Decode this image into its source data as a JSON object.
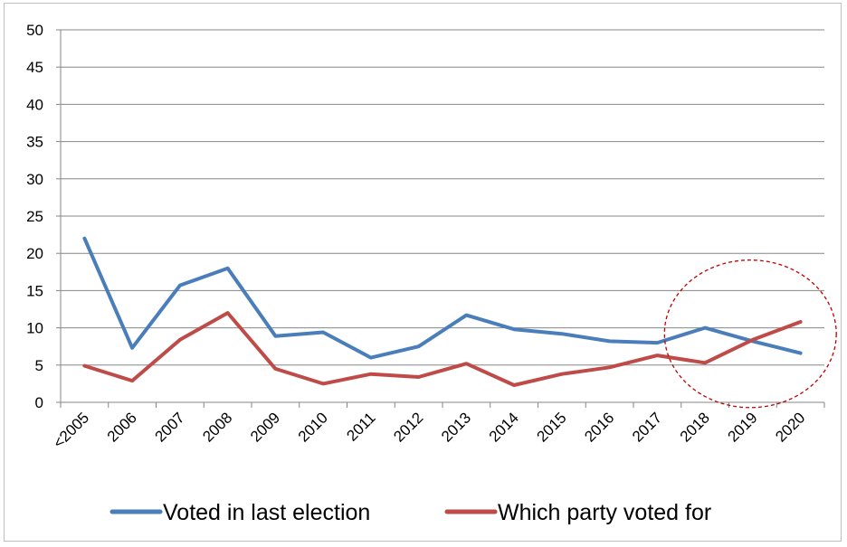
{
  "chart_data": {
    "type": "line",
    "title": "",
    "xlabel": "",
    "ylabel": "",
    "ylim": [
      0,
      50
    ],
    "yticks": [
      0,
      5,
      10,
      15,
      20,
      25,
      30,
      35,
      40,
      45,
      50
    ],
    "grid": true,
    "legend_position": "bottom",
    "categories": [
      "<2005",
      "2006",
      "2007",
      "2008",
      "2009",
      "2010",
      "2011",
      "2012",
      "2013",
      "2014",
      "2015",
      "2016",
      "2017",
      "2018",
      "2019",
      "2020"
    ],
    "series": [
      {
        "name": "Voted in last election",
        "color": "#4a7ebb",
        "values": [
          22.0,
          7.3,
          15.7,
          18.0,
          8.9,
          9.4,
          6.0,
          7.5,
          11.7,
          9.8,
          9.2,
          8.2,
          8.0,
          10.0,
          8.2,
          6.6
        ]
      },
      {
        "name": "Which party voted for",
        "color": "#be4b48",
        "values": [
          4.9,
          2.9,
          8.4,
          12.0,
          4.5,
          2.5,
          3.8,
          3.4,
          5.2,
          2.3,
          3.8,
          4.7,
          6.3,
          5.3,
          8.4,
          10.8
        ]
      }
    ],
    "annotation": {
      "shape": "dashed-circle",
      "color": "#c00000",
      "category_center": 13.95,
      "value_center": 9.2,
      "category_radius": 1.8,
      "value_radius": 9.9
    }
  }
}
